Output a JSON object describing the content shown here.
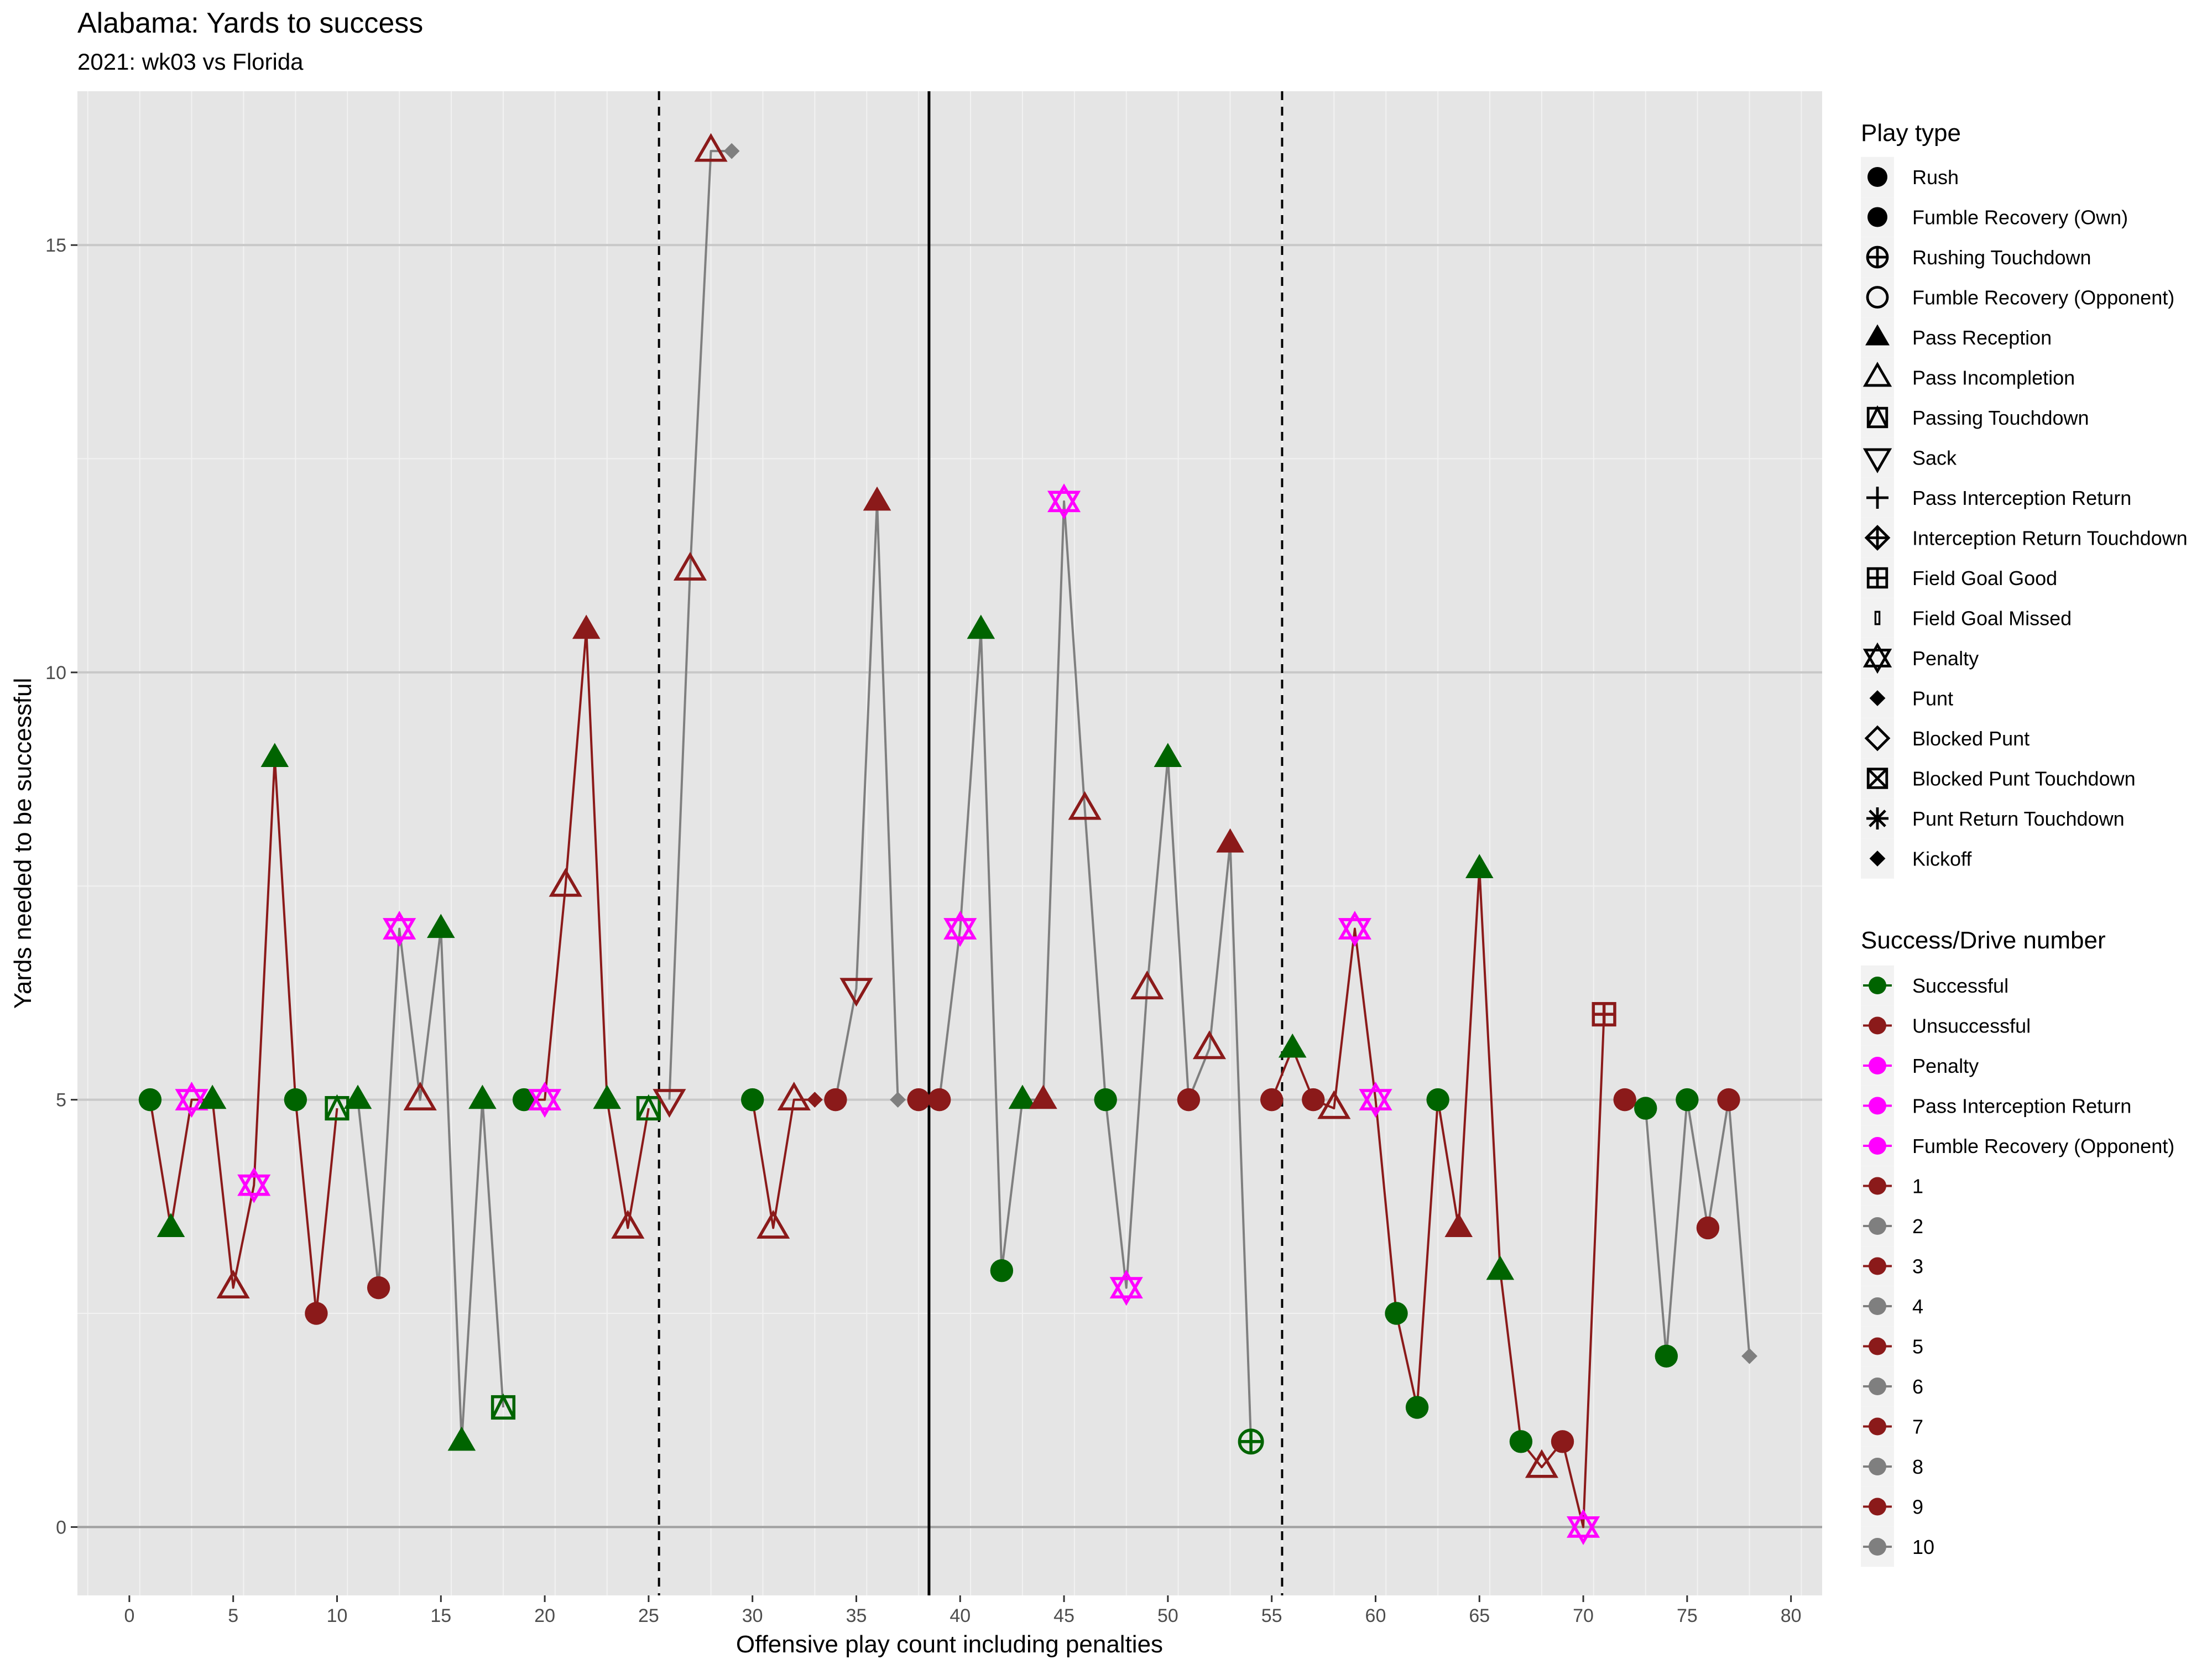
{
  "header": {
    "title": "Alabama: Yards to success",
    "subtitle": "2021: wk03 vs Florida"
  },
  "chart_data": {
    "type": "line",
    "title": "Alabama: Yards to success",
    "subtitle": "2021: wk03 vs Florida",
    "xlabel": "Offensive play count including penalties",
    "ylabel": "Yards needed to be successful",
    "xlim": [
      -2.5,
      81.5
    ],
    "ylim": [
      -0.8,
      16.8
    ],
    "x_ticks": [
      0,
      5,
      10,
      15,
      20,
      25,
      30,
      35,
      40,
      45,
      50,
      55,
      60,
      65,
      70,
      75,
      80
    ],
    "y_ticks": [
      0,
      5,
      10,
      15
    ],
    "grid": true,
    "reference_lines": {
      "solid_vertical": [
        38.5
      ],
      "dashed_vertical": [
        25.5,
        55.5
      ],
      "horizontal": [
        0
      ]
    },
    "colors": {
      "successful": "#006400",
      "unsuccessful": "#8B1A1A",
      "penalty": "#FF00FF",
      "drive_odd": "#8B1A1A",
      "drive_even": "#7F7F7F"
    },
    "legend_play_type": {
      "title": "Play type",
      "items": [
        {
          "label": "Rush",
          "shape": "circle-filled"
        },
        {
          "label": "Fumble Recovery (Own)",
          "shape": "circle-filled"
        },
        {
          "label": "Rushing Touchdown",
          "shape": "circle-plus"
        },
        {
          "label": "Fumble Recovery (Opponent)",
          "shape": "circle-open"
        },
        {
          "label": "Pass Reception",
          "shape": "triangle-filled"
        },
        {
          "label": "Pass Incompletion",
          "shape": "triangle-open"
        },
        {
          "label": "Passing Touchdown",
          "shape": "square-triangle"
        },
        {
          "label": "Sack",
          "shape": "triangle-down-open"
        },
        {
          "label": "Pass Interception Return",
          "shape": "plus"
        },
        {
          "label": "Interception Return Touchdown",
          "shape": "diamond-plus"
        },
        {
          "label": "Field Goal Good",
          "shape": "square-plus"
        },
        {
          "label": "Field Goal Missed",
          "shape": "bar"
        },
        {
          "label": "Penalty",
          "shape": "star-of-david"
        },
        {
          "label": "Punt",
          "shape": "diamond-filled"
        },
        {
          "label": "Blocked Punt",
          "shape": "diamond-open"
        },
        {
          "label": "Blocked Punt Touchdown",
          "shape": "square-x"
        },
        {
          "label": "Punt Return Touchdown",
          "shape": "asterisk"
        },
        {
          "label": "Kickoff",
          "shape": "diamond-filled"
        }
      ]
    },
    "legend_success_drive": {
      "title": "Success/Drive number",
      "items": [
        {
          "label": "Successful",
          "color": "#006400"
        },
        {
          "label": "Unsuccessful",
          "color": "#8B1A1A"
        },
        {
          "label": "Penalty",
          "color": "#FF00FF"
        },
        {
          "label": "Pass Interception Return",
          "color": "#FF00FF"
        },
        {
          "label": "Fumble Recovery (Opponent)",
          "color": "#FF00FF"
        },
        {
          "label": "1",
          "color": "#8B1A1A"
        },
        {
          "label": "2",
          "color": "#7F7F7F"
        },
        {
          "label": "3",
          "color": "#8B1A1A"
        },
        {
          "label": "4",
          "color": "#7F7F7F"
        },
        {
          "label": "5",
          "color": "#8B1A1A"
        },
        {
          "label": "6",
          "color": "#7F7F7F"
        },
        {
          "label": "7",
          "color": "#8B1A1A"
        },
        {
          "label": "8",
          "color": "#7F7F7F"
        },
        {
          "label": "9",
          "color": "#8B1A1A"
        },
        {
          "label": "10",
          "color": "#7F7F7F"
        }
      ]
    },
    "drives": [
      {
        "drive": 1,
        "points": [
          {
            "x": 1,
            "y": 5,
            "play": "Rush",
            "result": "successful"
          },
          {
            "x": 2,
            "y": 3.5,
            "play": "Pass Reception",
            "result": "successful"
          },
          {
            "x": 3,
            "y": 5,
            "play": "Penalty",
            "result": "penalty"
          },
          {
            "x": 4,
            "y": 5,
            "play": "Pass Reception",
            "result": "successful"
          },
          {
            "x": 5,
            "y": 2.8,
            "play": "Pass Incompletion",
            "result": "unsuccessful"
          },
          {
            "x": 6,
            "y": 4,
            "play": "Penalty",
            "result": "penalty"
          },
          {
            "x": 7,
            "y": 9,
            "play": "Pass Reception",
            "result": "successful"
          },
          {
            "x": 8,
            "y": 5,
            "play": "Rush",
            "result": "successful"
          },
          {
            "x": 9,
            "y": 2.5,
            "play": "Rush",
            "result": "unsuccessful"
          },
          {
            "x": 10,
            "y": 4.9,
            "play": "Passing Touchdown",
            "result": "successful"
          }
        ]
      },
      {
        "drive": 2,
        "points": [
          {
            "x": 11,
            "y": 5,
            "play": "Pass Reception",
            "result": "successful"
          },
          {
            "x": 12,
            "y": 2.8,
            "play": "Rush",
            "result": "unsuccessful"
          },
          {
            "x": 13,
            "y": 7,
            "play": "Penalty",
            "result": "penalty"
          },
          {
            "x": 14,
            "y": 5,
            "play": "Pass Incompletion",
            "result": "unsuccessful"
          },
          {
            "x": 15,
            "y": 7,
            "play": "Pass Reception",
            "result": "successful"
          },
          {
            "x": 16,
            "y": 1,
            "play": "Pass Reception",
            "result": "successful"
          },
          {
            "x": 17,
            "y": 5,
            "play": "Pass Reception",
            "result": "successful"
          },
          {
            "x": 18,
            "y": 1.4,
            "play": "Passing Touchdown",
            "result": "successful"
          }
        ]
      },
      {
        "drive": 3,
        "points": [
          {
            "x": 19,
            "y": 5,
            "play": "Rush",
            "result": "successful"
          },
          {
            "x": 20,
            "y": 5,
            "play": "Penalty",
            "result": "penalty"
          },
          {
            "x": 21,
            "y": 7.5,
            "play": "Pass Incompletion",
            "result": "unsuccessful"
          },
          {
            "x": 22,
            "y": 10.5,
            "play": "Pass Reception",
            "result": "unsuccessful"
          },
          {
            "x": 23,
            "y": 5,
            "play": "Pass Reception",
            "result": "successful"
          },
          {
            "x": 24,
            "y": 3.5,
            "play": "Pass Incompletion",
            "result": "unsuccessful"
          },
          {
            "x": 25,
            "y": 4.9,
            "play": "Passing Touchdown",
            "result": "successful"
          }
        ]
      },
      {
        "drive": 4,
        "points": [
          {
            "x": 26,
            "y": 5,
            "play": "Sack",
            "result": "unsuccessful"
          },
          {
            "x": 27,
            "y": 11.2,
            "play": "Pass Incompletion",
            "result": "unsuccessful"
          },
          {
            "x": 28,
            "y": 16.1,
            "play": "Pass Incompletion",
            "result": "unsuccessful"
          },
          {
            "x": 29,
            "y": 16.1,
            "play": "Punt",
            "result": "drive"
          }
        ]
      },
      {
        "drive": 5,
        "points": [
          {
            "x": 30,
            "y": 5,
            "play": "Rush",
            "result": "successful"
          },
          {
            "x": 31,
            "y": 3.5,
            "play": "Pass Incompletion",
            "result": "unsuccessful"
          },
          {
            "x": 32,
            "y": 5,
            "play": "Pass Incompletion",
            "result": "unsuccessful"
          },
          {
            "x": 33,
            "y": 5,
            "play": "Punt",
            "result": "drive"
          }
        ]
      },
      {
        "drive": 6,
        "points": [
          {
            "x": 34,
            "y": 5,
            "play": "Rush",
            "result": "unsuccessful"
          },
          {
            "x": 35,
            "y": 6.3,
            "play": "Sack",
            "result": "unsuccessful"
          },
          {
            "x": 36,
            "y": 12,
            "play": "Pass Reception",
            "result": "unsuccessful"
          },
          {
            "x": 37,
            "y": 5,
            "play": "Punt",
            "result": "drive"
          }
        ]
      },
      {
        "drive": 7,
        "points": [
          {
            "x": 38,
            "y": 5,
            "play": "Rush",
            "result": "unsuccessful"
          }
        ]
      },
      {
        "drive": 8,
        "points": [
          {
            "x": 39,
            "y": 5,
            "play": "Rush",
            "result": "unsuccessful"
          },
          {
            "x": 40,
            "y": 7,
            "play": "Penalty",
            "result": "penalty"
          },
          {
            "x": 41,
            "y": 10.5,
            "play": "Pass Reception",
            "result": "successful"
          },
          {
            "x": 42,
            "y": 3,
            "play": "Rush",
            "result": "successful"
          },
          {
            "x": 43,
            "y": 5,
            "play": "Pass Reception",
            "result": "successful"
          },
          {
            "x": 44,
            "y": 5,
            "play": "Pass Reception",
            "result": "unsuccessful"
          },
          {
            "x": 45,
            "y": 12,
            "play": "Penalty",
            "result": "penalty"
          },
          {
            "x": 46,
            "y": 8.4,
            "play": "Pass Incompletion",
            "result": "unsuccessful"
          },
          {
            "x": 47,
            "y": 5,
            "play": "Rush",
            "result": "successful"
          },
          {
            "x": 48,
            "y": 2.8,
            "play": "Penalty",
            "result": "penalty"
          },
          {
            "x": 49,
            "y": 6.3,
            "play": "Pass Incompletion",
            "result": "unsuccessful"
          },
          {
            "x": 50,
            "y": 9,
            "play": "Pass Reception",
            "result": "successful"
          },
          {
            "x": 51,
            "y": 5,
            "play": "Rush",
            "result": "unsuccessful"
          },
          {
            "x": 52,
            "y": 5.6,
            "play": "Pass Incompletion",
            "result": "unsuccessful"
          },
          {
            "x": 53,
            "y": 8,
            "play": "Pass Reception",
            "result": "unsuccessful"
          },
          {
            "x": 54,
            "y": 1,
            "play": "Rushing Touchdown",
            "result": "successful"
          }
        ]
      },
      {
        "drive": 9,
        "points": [
          {
            "x": 55,
            "y": 5,
            "play": "Rush",
            "result": "unsuccessful"
          },
          {
            "x": 56,
            "y": 5.6,
            "play": "Pass Reception",
            "result": "successful"
          },
          {
            "x": 57,
            "y": 5,
            "play": "Rush",
            "result": "unsuccessful"
          },
          {
            "x": 58,
            "y": 4.9,
            "play": "Pass Incompletion",
            "result": "unsuccessful"
          },
          {
            "x": 59,
            "y": 7,
            "play": "Penalty",
            "result": "penalty"
          },
          {
            "x": 60,
            "y": 5,
            "play": "Penalty",
            "result": "penalty"
          },
          {
            "x": 61,
            "y": 2.5,
            "play": "Rush",
            "result": "successful"
          },
          {
            "x": 62,
            "y": 1.4,
            "play": "Rush",
            "result": "successful"
          },
          {
            "x": 63,
            "y": 5,
            "play": "Rush",
            "result": "successful"
          },
          {
            "x": 64,
            "y": 3.5,
            "play": "Pass Reception",
            "result": "unsuccessful"
          },
          {
            "x": 65,
            "y": 7.7,
            "play": "Pass Reception",
            "result": "successful"
          },
          {
            "x": 66,
            "y": 3,
            "play": "Pass Reception",
            "result": "successful"
          },
          {
            "x": 67,
            "y": 1,
            "play": "Rush",
            "result": "successful"
          },
          {
            "x": 68,
            "y": 0.7,
            "play": "Pass Incompletion",
            "result": "unsuccessful"
          },
          {
            "x": 69,
            "y": 1,
            "play": "Rush",
            "result": "unsuccessful"
          },
          {
            "x": 70,
            "y": 0,
            "play": "Penalty",
            "result": "penalty"
          },
          {
            "x": 71,
            "y": 6,
            "play": "Field Goal Good",
            "result": "unsuccessful"
          }
        ]
      },
      {
        "drive": 10,
        "points": [
          {
            "x": 72,
            "y": 5,
            "play": "Rush",
            "result": "unsuccessful"
          },
          {
            "x": 73,
            "y": 4.9,
            "play": "Rush",
            "result": "successful"
          },
          {
            "x": 74,
            "y": 2,
            "play": "Rush",
            "result": "successful"
          },
          {
            "x": 75,
            "y": 5,
            "play": "Rush",
            "result": "successful"
          },
          {
            "x": 76,
            "y": 3.5,
            "play": "Rush",
            "result": "unsuccessful"
          },
          {
            "x": 77,
            "y": 5,
            "play": "Rush",
            "result": "unsuccessful"
          },
          {
            "x": 78,
            "y": 2,
            "play": "Kickoff",
            "result": "drive"
          }
        ]
      }
    ]
  }
}
